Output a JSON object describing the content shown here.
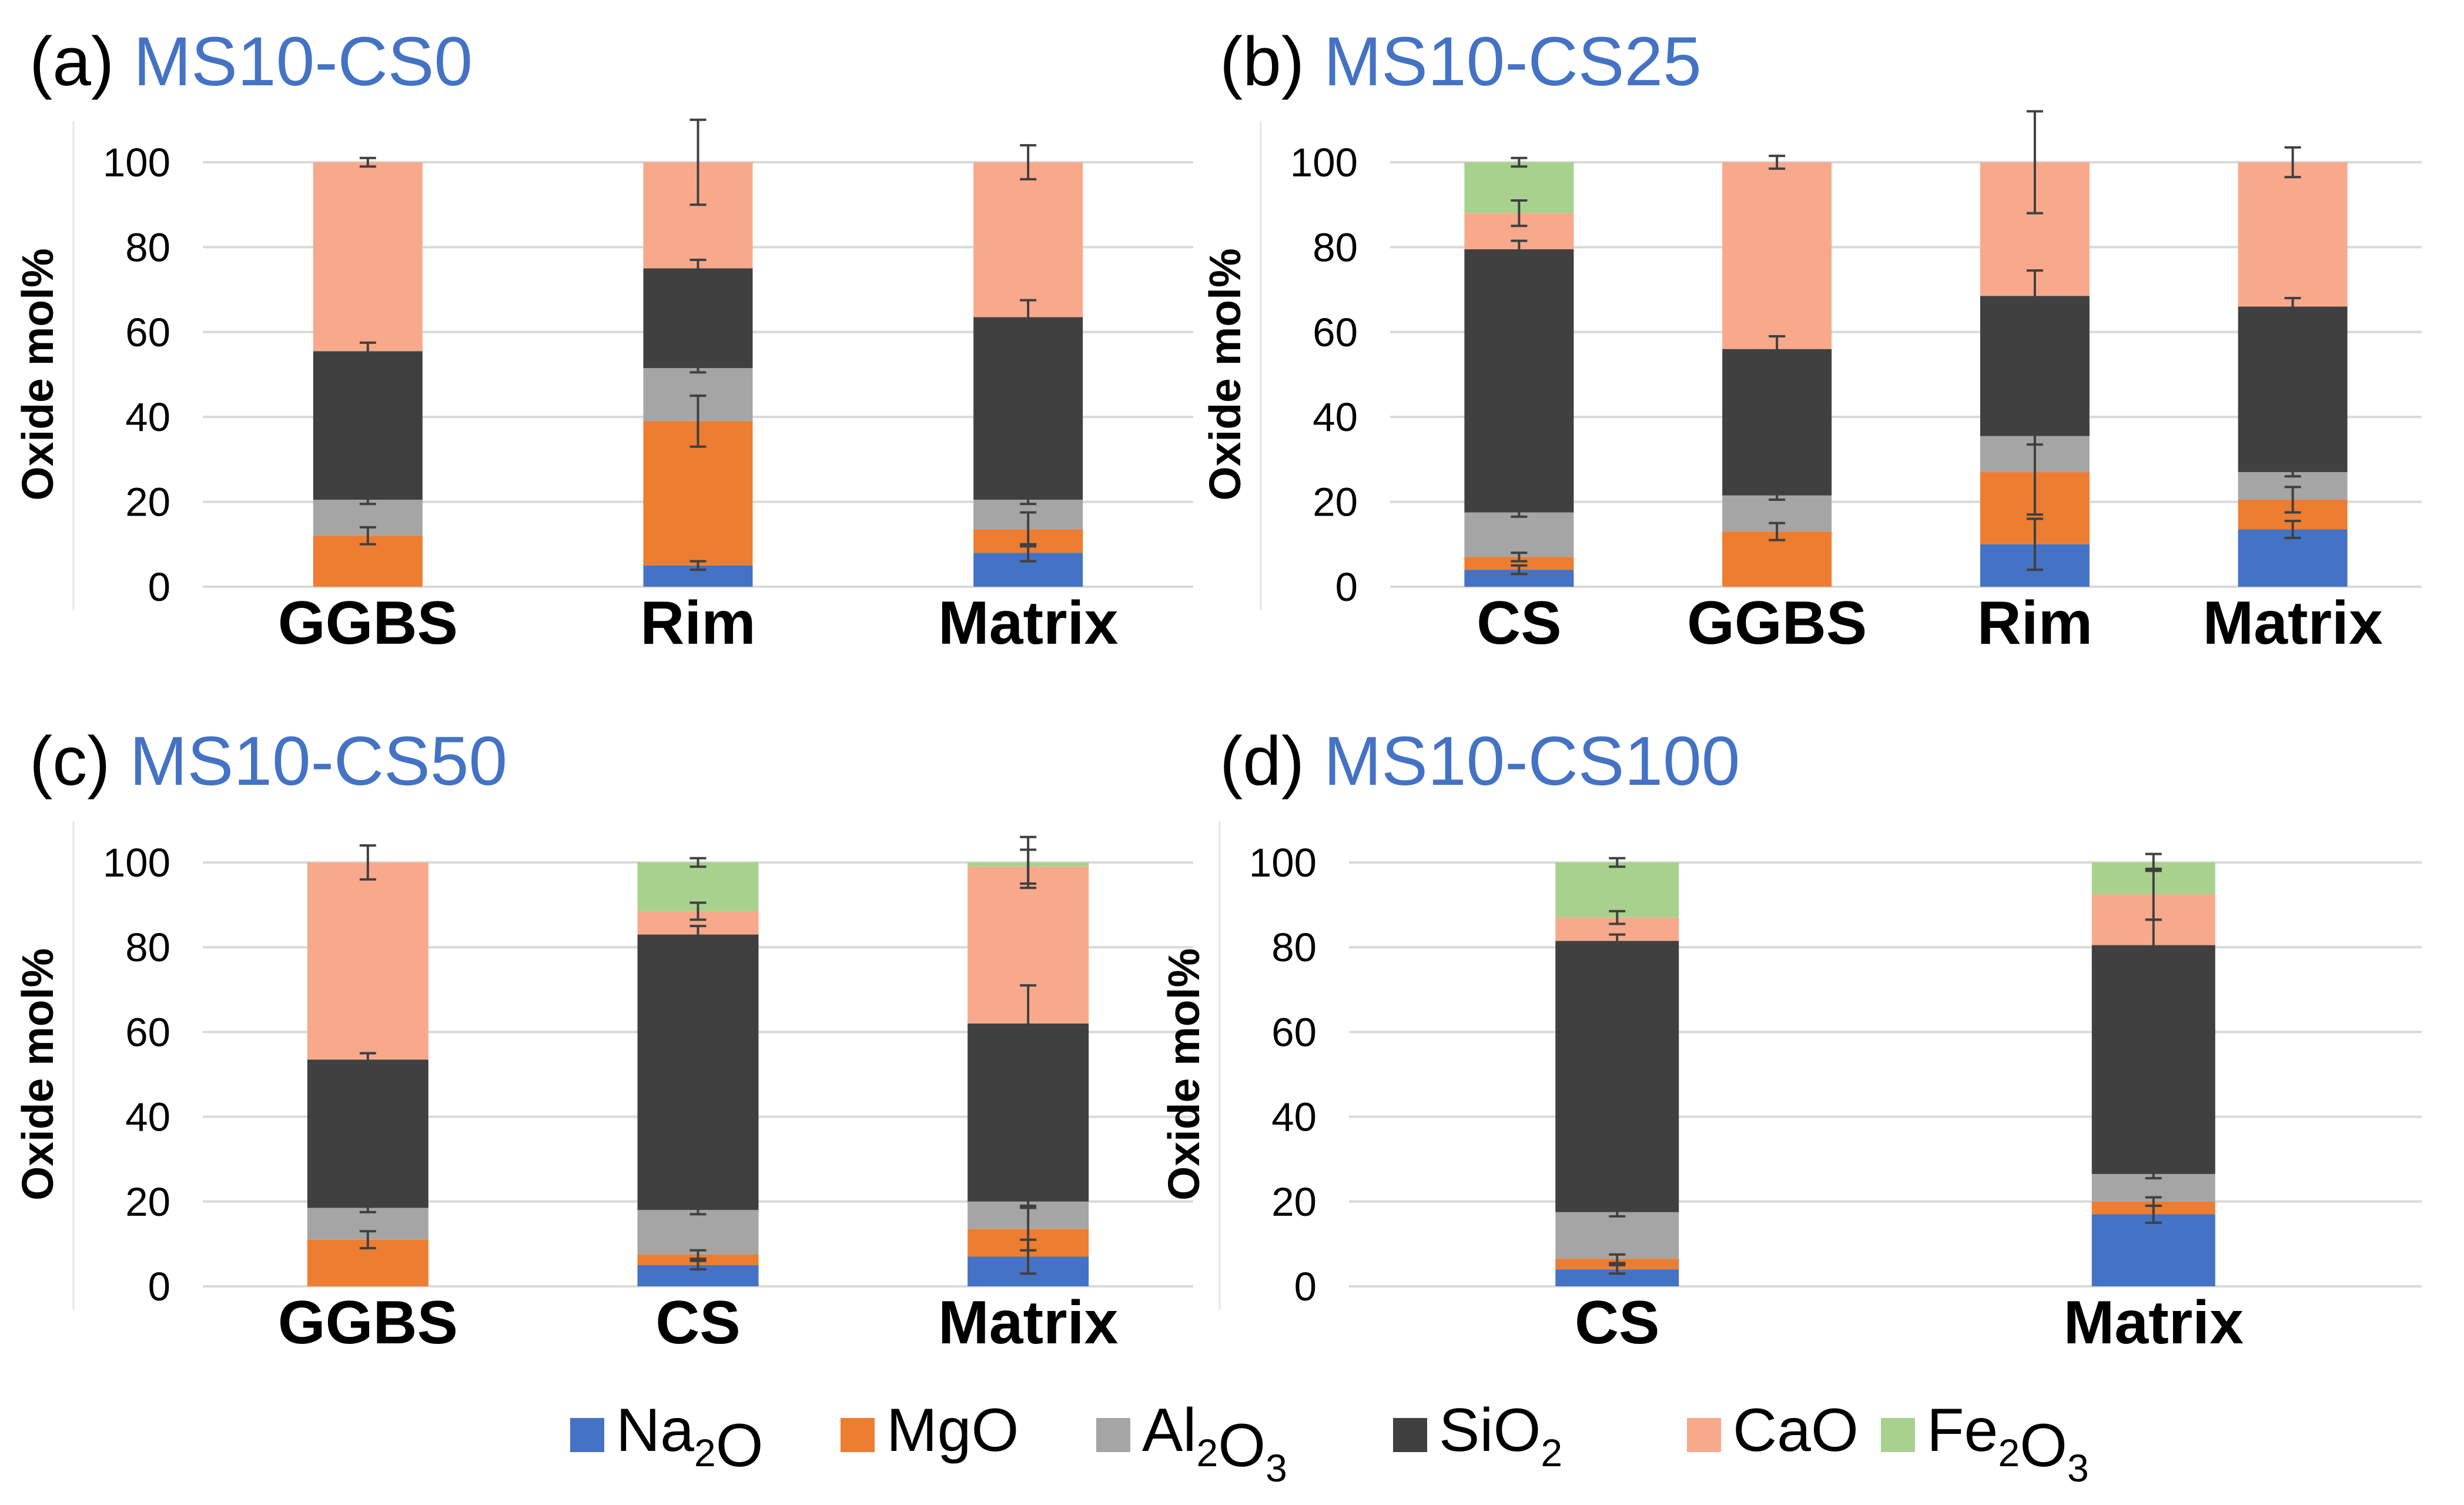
{
  "chart_data": [
    {
      "type": "bar",
      "stacked": true,
      "panel_label": "(a)",
      "title": "MS10-CS0",
      "ylabel": "Oxide mol%",
      "ylim": [
        0,
        100
      ],
      "yticks": [
        0,
        20,
        40,
        60,
        80,
        100
      ],
      "grid": true,
      "categories": [
        "GGBS",
        "Rim",
        "Matrix"
      ],
      "series": [
        {
          "name": "Na2O",
          "values": [
            0,
            5,
            8
          ],
          "errors": [
            0,
            1,
            2
          ]
        },
        {
          "name": "MgO",
          "values": [
            12,
            34,
            5.5
          ],
          "errors": [
            2,
            6,
            4
          ]
        },
        {
          "name": "Al2O3",
          "values": [
            8.5,
            12.5,
            7
          ],
          "errors": [
            1,
            1,
            1
          ]
        },
        {
          "name": "SiO2",
          "values": [
            35,
            23.5,
            43
          ],
          "errors": [
            2,
            2,
            4
          ]
        },
        {
          "name": "CaO",
          "values": [
            44.5,
            25,
            36.5
          ],
          "errors": [
            1,
            10,
            4
          ]
        },
        {
          "name": "Fe2O3",
          "values": [
            0,
            0,
            0
          ],
          "errors": [
            0,
            0,
            0
          ]
        }
      ]
    },
    {
      "type": "bar",
      "stacked": true,
      "panel_label": "(b)",
      "title": "MS10-CS25",
      "ylabel": "Oxide mol%",
      "ylim": [
        0,
        100
      ],
      "yticks": [
        0,
        20,
        40,
        60,
        80,
        100
      ],
      "grid": true,
      "categories": [
        "CS",
        "GGBS",
        "Rim",
        "Matrix"
      ],
      "series": [
        {
          "name": "Na2O",
          "values": [
            4,
            0,
            10,
            13.5
          ],
          "errors": [
            1,
            0,
            6,
            2
          ]
        },
        {
          "name": "MgO",
          "values": [
            3,
            13,
            17,
            7
          ],
          "errors": [
            1,
            2,
            10,
            3
          ]
        },
        {
          "name": "Al2O3",
          "values": [
            10.5,
            8.5,
            8.5,
            6.5
          ],
          "errors": [
            1,
            1,
            2,
            1
          ]
        },
        {
          "name": "SiO2",
          "values": [
            62,
            34.5,
            33,
            39
          ],
          "errors": [
            2,
            3,
            6,
            2
          ]
        },
        {
          "name": "CaO",
          "values": [
            8.5,
            44,
            31.5,
            34
          ],
          "errors": [
            3,
            1.5,
            12,
            3.5
          ]
        },
        {
          "name": "Fe2O3",
          "values": [
            12,
            0,
            0,
            0
          ],
          "errors": [
            1,
            0,
            0,
            0
          ]
        }
      ]
    },
    {
      "type": "bar",
      "stacked": true,
      "panel_label": "(c)",
      "title": "MS10-CS50",
      "ylabel": "Oxide mol%",
      "ylim": [
        0,
        100
      ],
      "yticks": [
        0,
        20,
        40,
        60,
        80,
        100
      ],
      "grid": true,
      "categories": [
        "GGBS",
        "CS",
        "Matrix"
      ],
      "series": [
        {
          "name": "Na2O",
          "values": [
            0,
            5,
            7
          ],
          "errors": [
            0,
            1,
            4
          ]
        },
        {
          "name": "MgO",
          "values": [
            11,
            2.5,
            6.5
          ],
          "errors": [
            2,
            1,
            5
          ]
        },
        {
          "name": "Al2O3",
          "values": [
            7.5,
            10.5,
            6.5
          ],
          "errors": [
            1,
            1,
            1
          ]
        },
        {
          "name": "SiO2",
          "values": [
            35,
            65,
            42
          ],
          "errors": [
            1.5,
            2,
            9
          ]
        },
        {
          "name": "CaO",
          "values": [
            46.5,
            5.5,
            37
          ],
          "errors": [
            4,
            2,
            4
          ]
        },
        {
          "name": "Fe2O3",
          "values": [
            0,
            11.5,
            1
          ],
          "errors": [
            0,
            1,
            6
          ]
        }
      ]
    },
    {
      "type": "bar",
      "stacked": true,
      "panel_label": "(d)",
      "title": "MS10-CS100",
      "ylabel": "Oxide mol%",
      "ylim": [
        0,
        100
      ],
      "yticks": [
        0,
        20,
        40,
        60,
        80,
        100
      ],
      "grid": true,
      "categories": [
        "CS",
        "Matrix"
      ],
      "series": [
        {
          "name": "Na2O",
          "values": [
            4,
            17
          ],
          "errors": [
            1,
            2
          ]
        },
        {
          "name": "MgO",
          "values": [
            2.5,
            3
          ],
          "errors": [
            1,
            1
          ]
        },
        {
          "name": "Al2O3",
          "values": [
            11,
            6.5
          ],
          "errors": [
            1,
            1
          ]
        },
        {
          "name": "SiO2",
          "values": [
            64,
            54
          ],
          "errors": [
            1.5,
            6
          ]
        },
        {
          "name": "CaO",
          "values": [
            5.5,
            12
          ],
          "errors": [
            1.5,
            6
          ]
        },
        {
          "name": "Fe2O3",
          "values": [
            13,
            7.5
          ],
          "errors": [
            1,
            2
          ]
        }
      ]
    }
  ],
  "legend": {
    "position": "bottom",
    "items": [
      {
        "key": "Na2O",
        "base": "Na",
        "sub1": "2",
        "mid": "O",
        "sub2": "",
        "end": "",
        "color": "#4472c4"
      },
      {
        "key": "MgO",
        "base": "MgO",
        "sub1": "",
        "mid": "",
        "sub2": "",
        "end": "",
        "color": "#ed7d31"
      },
      {
        "key": "Al2O3",
        "base": "Al",
        "sub1": "2",
        "mid": "O",
        "sub2": "3",
        "end": "",
        "color": "#a5a5a5"
      },
      {
        "key": "SiO2",
        "base": "SiO",
        "sub1": "2",
        "mid": "",
        "sub2": "",
        "end": "",
        "color": "#404040"
      },
      {
        "key": "CaO",
        "base": "CaO",
        "sub1": "",
        "mid": "",
        "sub2": "",
        "end": "",
        "color": "#f8a98b"
      },
      {
        "key": "Fe2O3",
        "base": "Fe",
        "sub1": "2",
        "mid": "O",
        "sub2": "3",
        "end": "",
        "color": "#a9d18e"
      }
    ]
  },
  "colors": {
    "Na2O": "#4472c4",
    "MgO": "#ed7d31",
    "Al2O3": "#a5a5a5",
    "SiO2": "#404040",
    "CaO": "#f8a98b",
    "Fe2O3": "#a9d18e",
    "title": "#4472c4",
    "grid": "#d9d9d9",
    "errorbar": "#404040"
  }
}
